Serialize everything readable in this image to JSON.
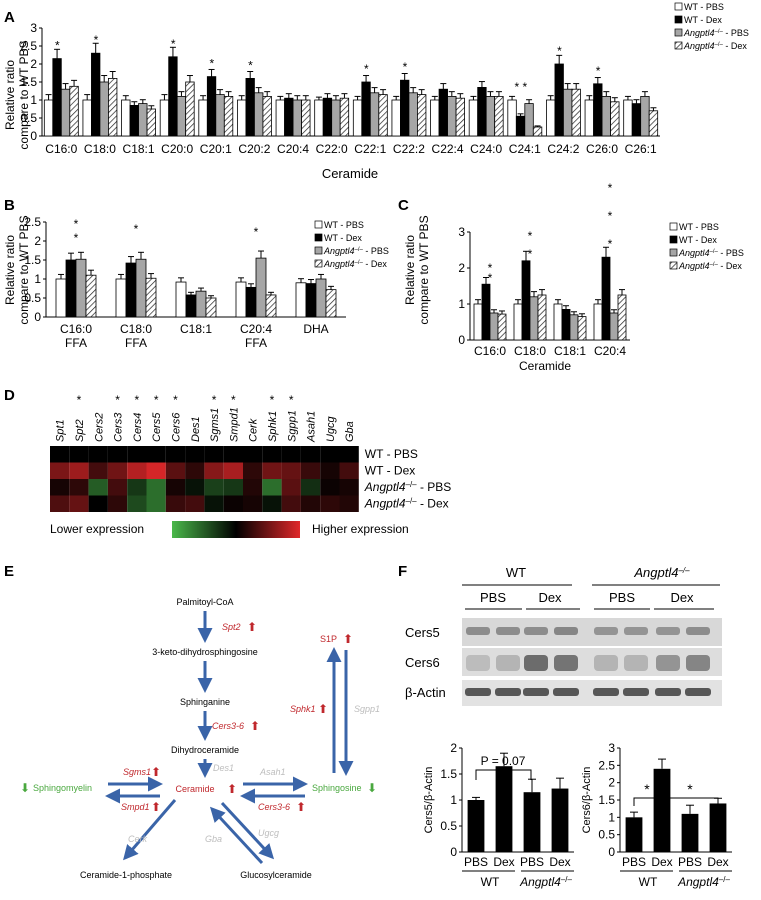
{
  "colors": {
    "wt_pbs": "#ffffff",
    "wt_dex": "#000000",
    "ko_pbs": "#a6a6a6",
    "ko_dex_hatch": "#222222",
    "pathway_arrow": "#3a64a8",
    "gene_up_red": "#c0282d",
    "inactive_gray": "#bdbdbd",
    "sphingolipid_green": "#4aa83f",
    "heat_low": "#4ab84a",
    "heat_mid": "#000000",
    "heat_high": "#e0282a"
  },
  "legend": {
    "wt_pbs": "WT - PBS",
    "wt_dex": "WT - Dex",
    "ko_pbs_gene": "Angptl4",
    "ko_pbs_suffix": " - PBS",
    "ko_dex_gene": "Angptl4",
    "ko_dex_suffix": " - Dex",
    "ko_superscript": "–/–"
  },
  "chart_data": [
    {
      "panel": "A",
      "type": "bar",
      "ylabel_line1": "Relative ratio",
      "ylabel_line2": "compare to WT PBS",
      "xlabel": "Ceramide",
      "ylim": [
        0,
        3
      ],
      "yticks": [
        "0",
        "0.5",
        "1",
        "1.5",
        "2",
        "2.5",
        "3"
      ],
      "categories": [
        "C16:0",
        "C18:0",
        "C18:1",
        "C20:0",
        "C20:1",
        "C20:2",
        "C20:4",
        "C22:0",
        "C22:1",
        "C22:2",
        "C22:4",
        "C24:0",
        "C24:1",
        "C24:2",
        "C26:0",
        "C26:1"
      ],
      "series": [
        {
          "name": "WT - PBS",
          "values": [
            1,
            1,
            1,
            1,
            1,
            1,
            1,
            1,
            1,
            1,
            1,
            1,
            1,
            1,
            1,
            1
          ],
          "errors": [
            0.15,
            0.15,
            0.12,
            0.15,
            0.12,
            0.12,
            0.1,
            0.08,
            0.1,
            0.1,
            0.1,
            0.1,
            0.1,
            0.12,
            0.12,
            0.1
          ]
        },
        {
          "name": "WT - Dex",
          "values": [
            2.15,
            2.3,
            0.85,
            2.2,
            1.65,
            1.6,
            1.05,
            1.05,
            1.5,
            1.55,
            1.3,
            1.35,
            0.55,
            2.0,
            1.45,
            0.9
          ]
        },
        {
          "name": "Angptl4 - PBS",
          "values": [
            1.3,
            1.5,
            0.9,
            1.1,
            1.15,
            1.2,
            1.0,
            1.0,
            1.2,
            1.2,
            1.1,
            1.1,
            0.9,
            1.3,
            1.1,
            1.1
          ]
        },
        {
          "name": "Angptl4 - Dex",
          "values": [
            1.38,
            1.6,
            0.75,
            1.5,
            1.1,
            1.1,
            1.0,
            1.05,
            1.15,
            1.15,
            1.05,
            1.1,
            0.25,
            1.3,
            0.95,
            0.7
          ]
        }
      ],
      "significance": [
        "*",
        "*",
        "",
        "*",
        "*",
        "*",
        "",
        "",
        "*",
        "*",
        "",
        "",
        "* *",
        "*",
        "*",
        ""
      ]
    },
    {
      "panel": "B",
      "type": "bar",
      "ylabel_line1": "Relative ratio",
      "ylabel_line2": "compare to WT PBS",
      "ylim": [
        0,
        2.5
      ],
      "yticks": [
        "0",
        "0.5",
        "1",
        "1.5",
        "2",
        "2.5"
      ],
      "categories": [
        [
          "C16:0",
          "FFA"
        ],
        [
          "C18:0",
          "FFA"
        ],
        [
          "C18:1",
          ""
        ],
        [
          "C20:4",
          "FFA"
        ],
        [
          "DHA",
          ""
        ]
      ],
      "series": [
        {
          "name": "WT - PBS",
          "values": [
            1.0,
            1.0,
            0.92,
            0.92,
            0.9
          ]
        },
        {
          "name": "WT - Dex",
          "values": [
            1.5,
            1.42,
            0.58,
            0.78,
            0.88
          ]
        },
        {
          "name": "Angptl4 - PBS",
          "values": [
            1.52,
            1.52,
            0.68,
            1.55,
            1.0
          ]
        },
        {
          "name": "Angptl4 - Dex",
          "values": [
            1.1,
            1.02,
            0.5,
            0.58,
            0.72
          ]
        }
      ]
    },
    {
      "panel": "C",
      "type": "bar",
      "ylabel_line1": "Relative ratio",
      "ylabel_line2": "compare to WT PBS",
      "xlabel": "Ceramide",
      "ylim": [
        0,
        3
      ],
      "yticks": [
        "0",
        "1",
        "2",
        "3"
      ],
      "categories": [
        "C16:0",
        "C18:0",
        "C18:1",
        "C20:4"
      ],
      "series": [
        {
          "name": "WT - PBS",
          "values": [
            1.0,
            1.0,
            1.0,
            1.0
          ]
        },
        {
          "name": "WT - Dex",
          "values": [
            1.55,
            2.2,
            0.85,
            2.3
          ]
        },
        {
          "name": "Angptl4 - PBS",
          "values": [
            0.75,
            1.2,
            0.7,
            0.75
          ]
        },
        {
          "name": "Angptl4 - Dex",
          "values": [
            0.72,
            1.25,
            0.65,
            1.25
          ]
        }
      ]
    },
    {
      "panel": "F-left",
      "type": "bar",
      "ylabel": "Cers5/β-Actin",
      "ylim": [
        0,
        2
      ],
      "yticks": [
        "0",
        "0.5",
        "1",
        "1.5",
        "2"
      ],
      "categories": [
        "PBS",
        "Dex",
        "PBS",
        "Dex"
      ],
      "values": [
        1.0,
        1.65,
        1.15,
        1.22
      ],
      "errors": [
        0.05,
        0.25,
        0.25,
        0.2
      ],
      "pvalue_label": "P = 0.07",
      "group_labels": [
        "WT",
        "Angptl4"
      ]
    },
    {
      "panel": "F-right",
      "type": "bar",
      "ylabel": "Cers6/β-Actin",
      "ylim": [
        0,
        3
      ],
      "yticks": [
        "0",
        "0.5",
        "1",
        "1.5",
        "2",
        "2.5",
        "3"
      ],
      "categories": [
        "PBS",
        "Dex",
        "PBS",
        "Dex"
      ],
      "values": [
        1.0,
        2.4,
        1.1,
        1.4
      ],
      "errors": [
        0.15,
        0.28,
        0.25,
        0.15
      ],
      "group_labels": [
        "WT",
        "Angptl4"
      ]
    }
  ],
  "panels": {
    "A": {
      "letter": "A"
    },
    "B": {
      "letter": "B"
    },
    "C": {
      "letter": "C"
    },
    "D": {
      "letter": "D"
    },
    "E": {
      "letter": "E"
    },
    "F": {
      "letter": "F"
    }
  },
  "heatmap": {
    "genes": [
      "Spt1",
      "Spt2",
      "Cers2",
      "Cers3",
      "Cers4",
      "Cers5",
      "Cers6",
      "Des1",
      "Sgms1",
      "Smpd1",
      "Cerk",
      "Sphk1",
      "Sgpp1",
      "Asah1",
      "Ugcg",
      "Gba"
    ],
    "star": [
      "",
      "*",
      "",
      "*",
      "*",
      "*",
      "*",
      "",
      "*",
      "*",
      "",
      "*",
      "*",
      "",
      "",
      ""
    ],
    "rows": [
      {
        "label": "WT - PBS",
        "gene": "",
        "values": [
          0,
          0,
          0,
          0,
          0,
          0,
          0,
          0,
          0,
          0,
          0,
          0,
          0,
          0,
          0,
          0
        ]
      },
      {
        "label": "WT - Dex",
        "gene": "",
        "values": [
          0.55,
          0.7,
          0.3,
          0.5,
          0.8,
          0.95,
          0.4,
          0.2,
          0.6,
          0.75,
          0.2,
          0.5,
          0.45,
          0.25,
          0.1,
          0.3
        ]
      },
      {
        "label": " - PBS",
        "gene": "Angptl4",
        "values": [
          0.1,
          0.2,
          -0.5,
          0.3,
          -0.3,
          -0.6,
          0.1,
          -0.1,
          -0.35,
          -0.3,
          0.15,
          -0.6,
          0.4,
          -0.25,
          0.05,
          0.1
        ]
      },
      {
        "label": " - Dex",
        "gene": "Angptl4",
        "values": [
          0.35,
          0.45,
          0.0,
          0.2,
          -0.4,
          -0.6,
          0.25,
          0.3,
          -0.1,
          0.05,
          0.1,
          -0.1,
          0.3,
          0.15,
          0.2,
          0.15
        ]
      }
    ],
    "low_label": "Lower expression",
    "high_label": "Higher expression"
  },
  "pathway": {
    "palmitoyl": "Palmitoyl-CoA",
    "spt2": "Spt2",
    "keto": "3-keto-dihydrosphingosine",
    "sphinganine": "Sphinganine",
    "cers36a": "Cers3-6",
    "dihydroceramide": "Dihydroceramide",
    "des1": "Des1",
    "ceramide": "Ceramide",
    "sgms1": "Sgms1",
    "smpd1": "Smpd1",
    "sphingomyelin": "Sphingomyelin",
    "asah1": "Asah1",
    "cers36b": "Cers3-6",
    "sphingosine": "Sphingosine",
    "sphk1": "Sphk1",
    "sgpp1": "Sgpp1",
    "s1p": "S1P",
    "cerk": "Cerk",
    "gba": "Gba",
    "ugcg": "Ugcg",
    "c1p": "Ceramide-1-phosphate",
    "glucosyl": "Glucosylceramide"
  },
  "western": {
    "wt": "WT",
    "ko": "Angptl4",
    "ko_sup": "–/–",
    "pbs": "PBS",
    "dex": "Dex",
    "rows": [
      "Cers5",
      "Cers6",
      "β-Actin"
    ]
  }
}
